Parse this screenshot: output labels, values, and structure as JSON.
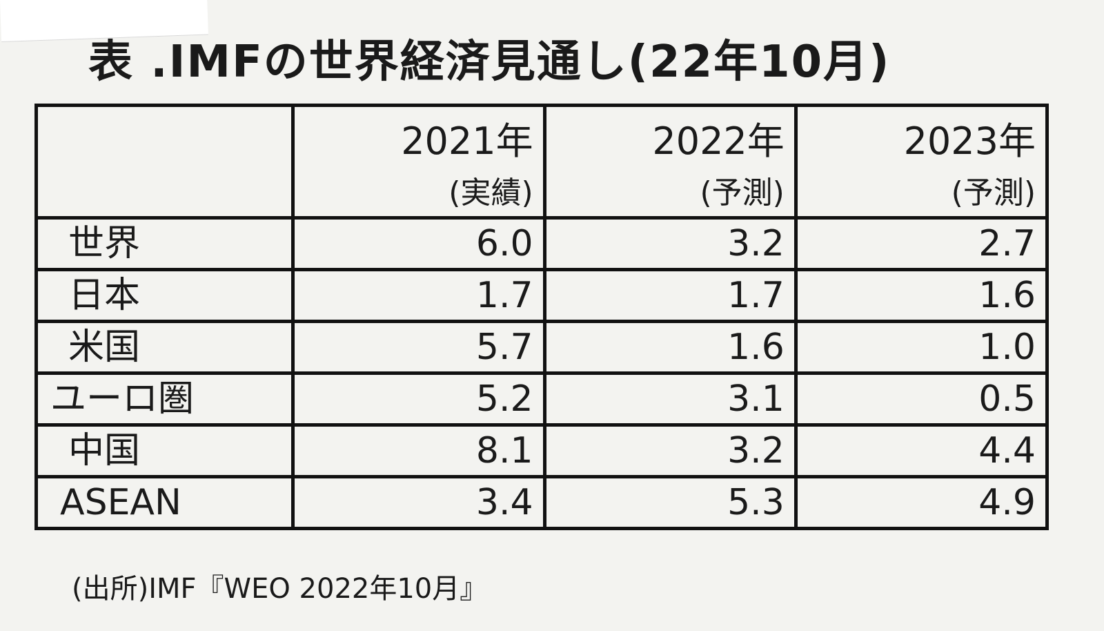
{
  "title": "表 .IMFの世界経済見通し(22年10月)",
  "table": {
    "columns": [
      {
        "year": "2021年",
        "note": "(実績)"
      },
      {
        "year": "2022年",
        "note": "(予測)"
      },
      {
        "year": "2023年",
        "note": "(予測)"
      }
    ],
    "rows": [
      {
        "label": "世界",
        "values": [
          "6.0",
          "3.2",
          "2.7"
        ]
      },
      {
        "label": "日本",
        "values": [
          "1.7",
          "1.7",
          "1.6"
        ]
      },
      {
        "label": "米国",
        "values": [
          "5.7",
          "1.6",
          "1.0"
        ]
      },
      {
        "label": "ユーロ圏",
        "values": [
          "5.2",
          "3.1",
          "0.5"
        ]
      },
      {
        "label": "中国",
        "values": [
          "8.1",
          "3.2",
          "4.4"
        ]
      },
      {
        "label": "ASEAN",
        "values": [
          "3.4",
          "5.3",
          "4.9"
        ]
      }
    ]
  },
  "source": "(出所)IMF『WEO 2022年10月』"
}
